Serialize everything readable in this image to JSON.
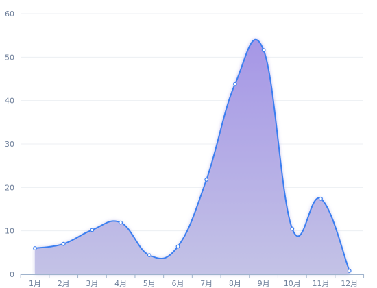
{
  "chart_data": {
    "type": "area",
    "title": "",
    "xlabel": "",
    "ylabel": "",
    "categories": [
      "1月",
      "2月",
      "3月",
      "4月",
      "5月",
      "6月",
      "7月",
      "8月",
      "9月",
      "10月",
      "11月",
      "12月"
    ],
    "series": [
      {
        "values": [
          6,
          7,
          10.2,
          11.9,
          4.4,
          6.4,
          21.8,
          43.8,
          51.6,
          10.5,
          17.4,
          0.8
        ]
      }
    ],
    "ylim": [
      0,
      60
    ],
    "yticks": [
      0,
      10,
      20,
      30,
      40,
      50,
      60
    ],
    "grid": true,
    "smooth": true,
    "line_color": "#3b7ff0",
    "fill_top_color": "#a596e6",
    "fill_bottom_color": "#c3c2e6"
  }
}
